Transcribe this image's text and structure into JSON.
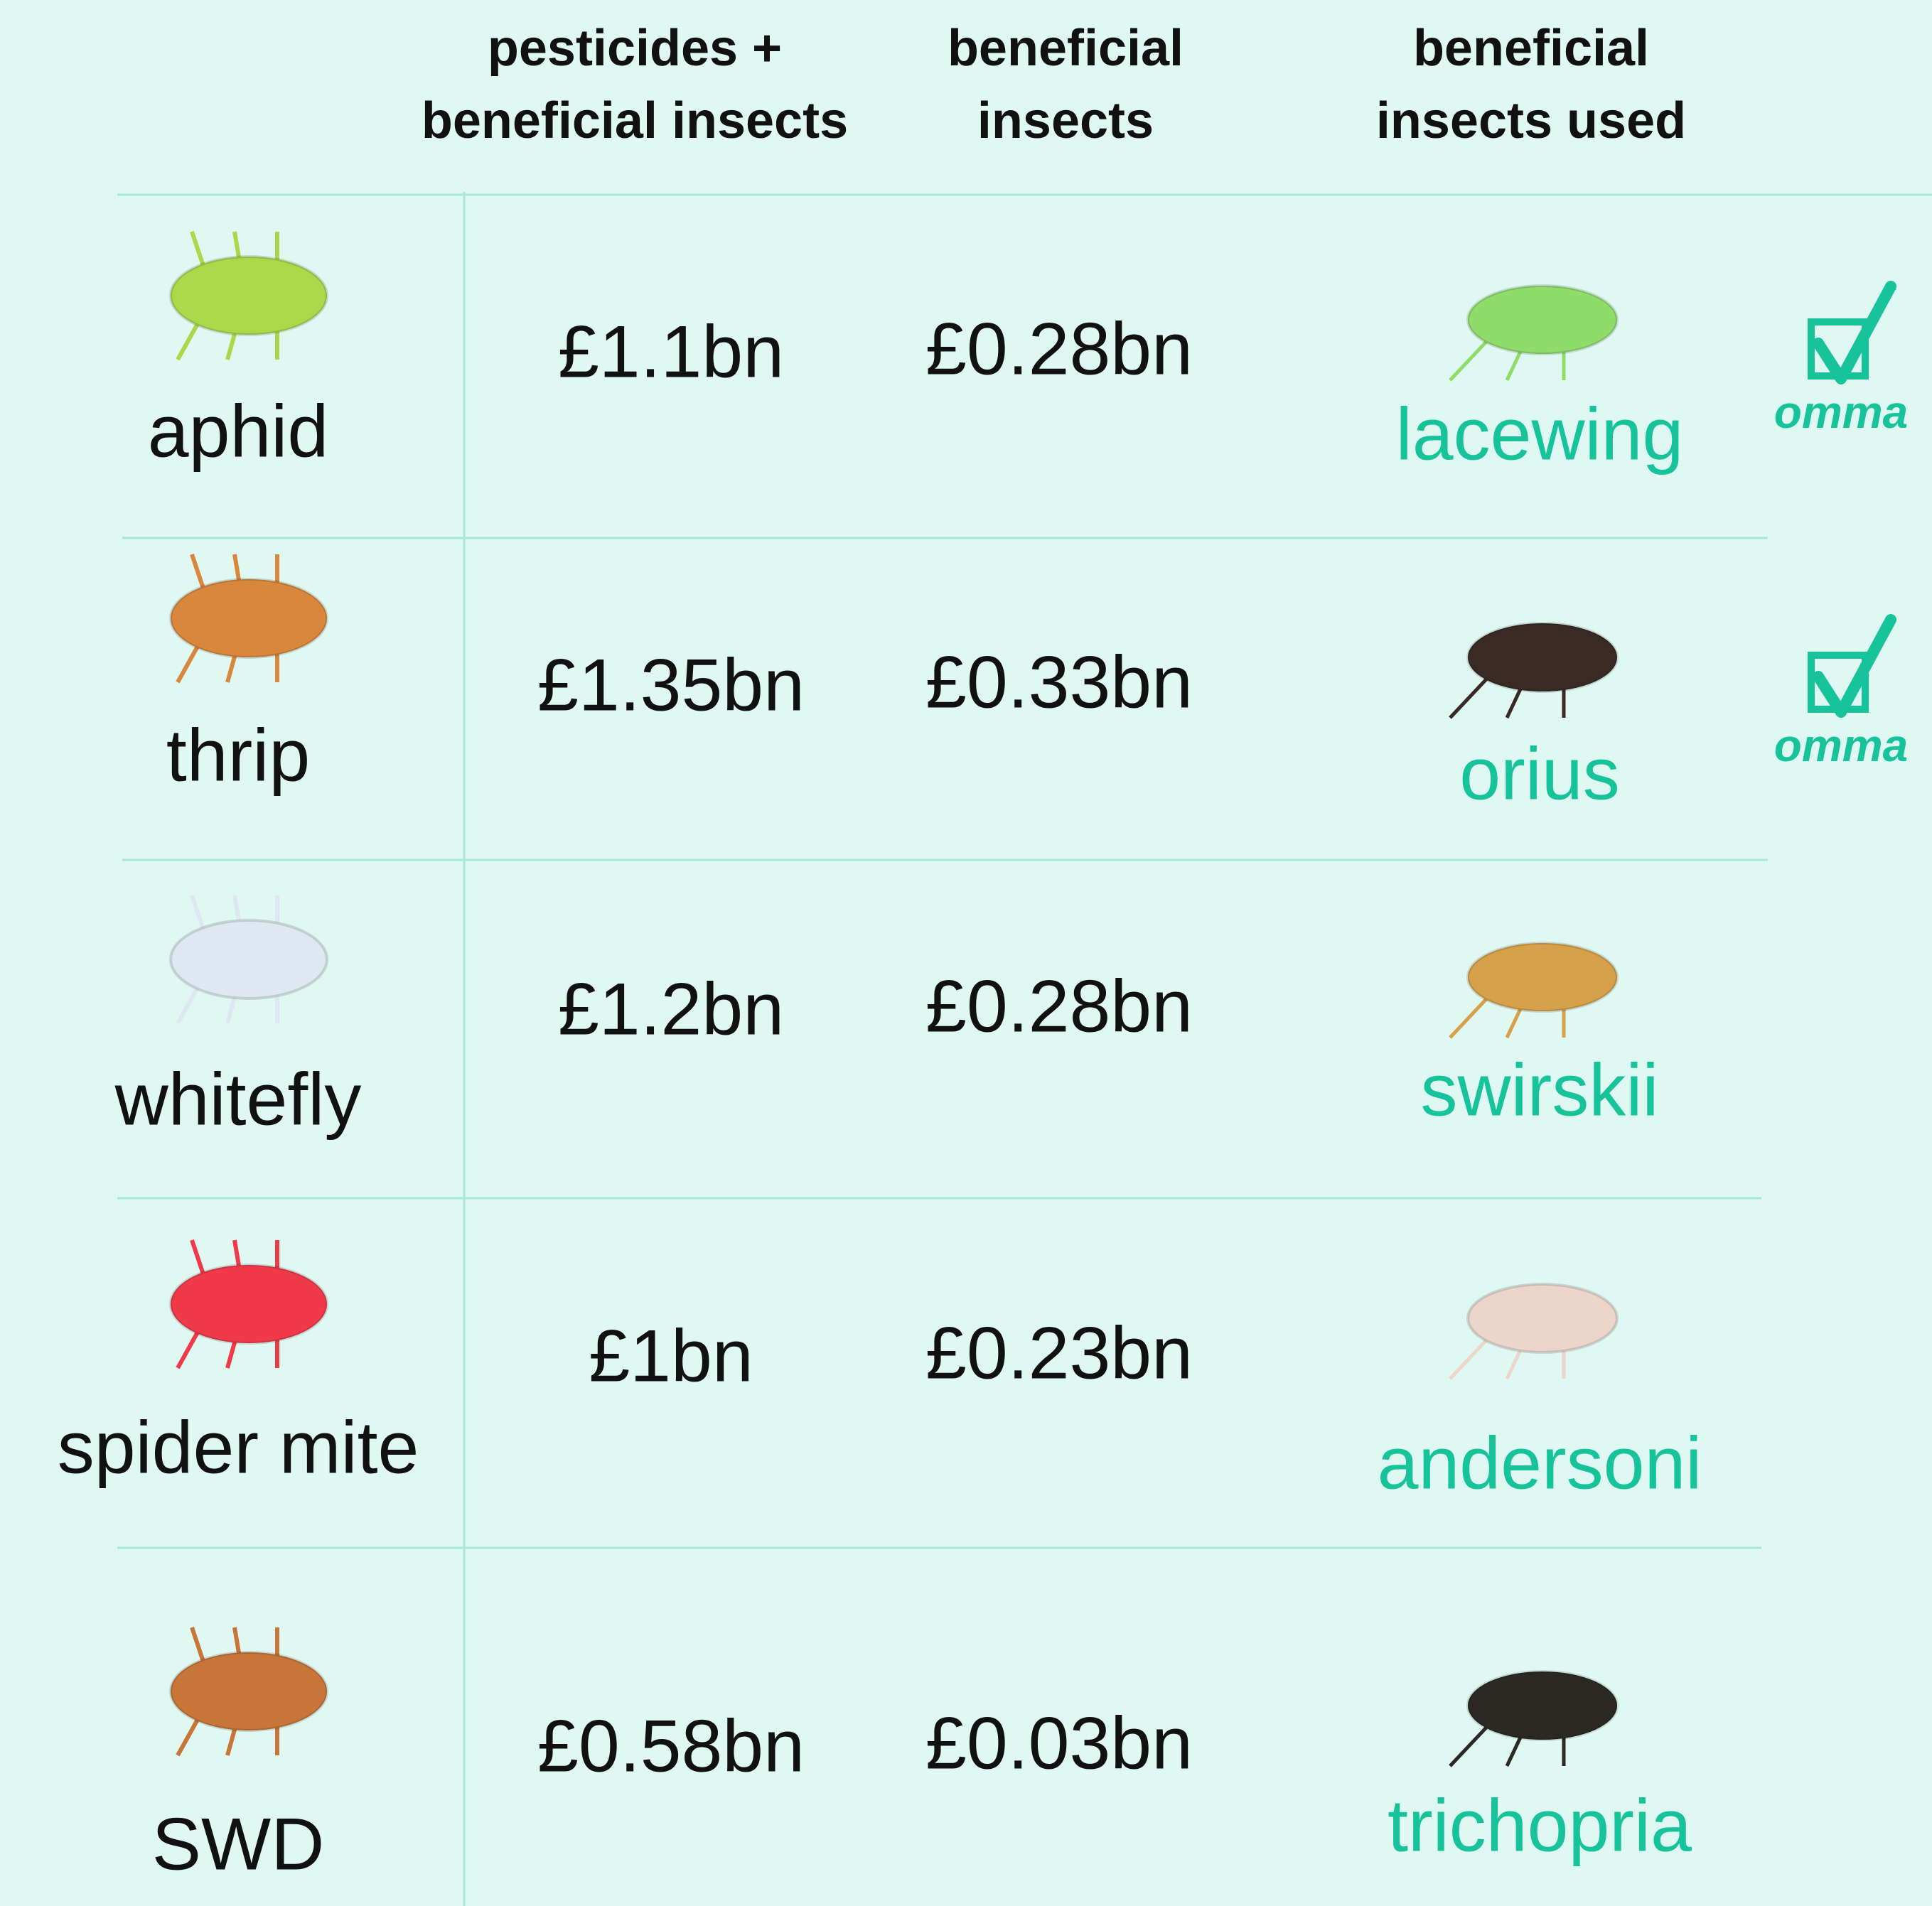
{
  "table": {
    "header": [
      [
        "pesticides +",
        "beneficial insects"
      ],
      [
        "beneficial",
        "insects"
      ],
      [
        "beneficial",
        "insects used"
      ]
    ],
    "rows": [
      {
        "pest": "aphid",
        "pesticides_cost": "£1.1bn",
        "beneficial_cost": "£0.28bn",
        "beneficial_insect": "lacewing",
        "badge": "omma"
      },
      {
        "pest": "thrip",
        "pesticides_cost": "£1.35bn",
        "beneficial_cost": "£0.33bn",
        "beneficial_insect": "orius",
        "badge": "omma"
      },
      {
        "pest": "whitefly",
        "pesticides_cost": "£1.2bn",
        "beneficial_cost": "£0.28bn",
        "beneficial_insect": "swirskii"
      },
      {
        "pest": "spider mite",
        "pesticides_cost": "£1bn",
        "beneficial_cost": "£0.23bn",
        "beneficial_insect": "andersoni"
      },
      {
        "pest": "SWD",
        "pesticides_cost": "£0.58bn",
        "beneficial_cost": "£0.03bn",
        "beneficial_insect": "trichopria"
      }
    ]
  }
}
